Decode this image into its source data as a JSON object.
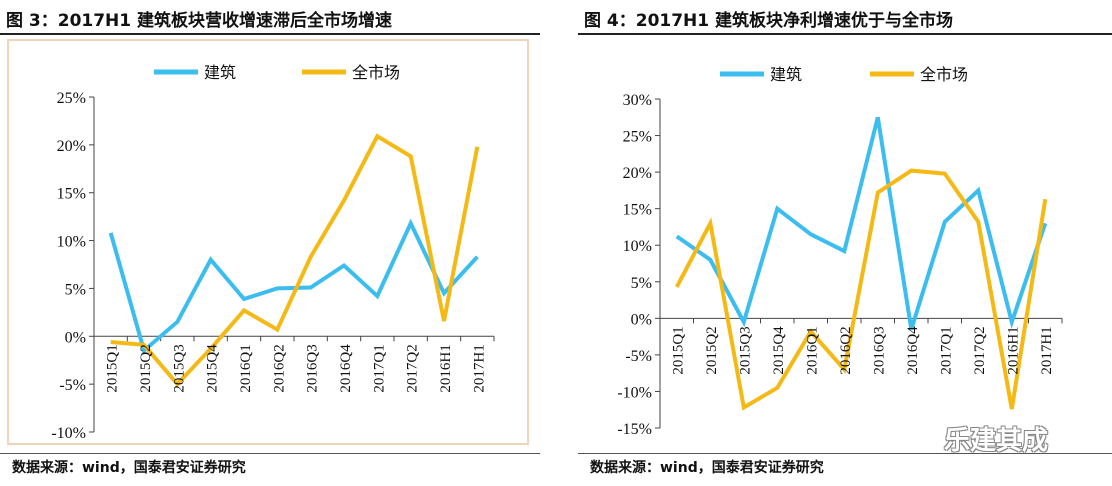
{
  "panels": [
    {
      "title": "图 3：2017H1 建筑板块营收增速滞后全市场增速",
      "source": "数据来源：wind，国泰君安证券研究",
      "chart_data": {
        "type": "line",
        "categories": [
          "2015Q1",
          "2015Q2",
          "2015Q3",
          "2015Q4",
          "2016Q1",
          "2016Q2",
          "2016Q3",
          "2016Q4",
          "2017Q1",
          "2017Q2",
          "2016H1",
          "2017H1"
        ],
        "series": [
          {
            "name": "建筑",
            "color": "#3bbdf0",
            "values": [
              10.8,
              -1.5,
              1.5,
              8.0,
              3.9,
              5.0,
              5.1,
              7.4,
              4.2,
              11.8,
              4.5,
              8.3
            ]
          },
          {
            "name": "全市场",
            "color": "#f5b915",
            "values": [
              -0.6,
              -0.9,
              -5.0,
              -1.3,
              2.7,
              0.7,
              8.3,
              14.2,
              20.9,
              18.8,
              1.6,
              19.8
            ]
          }
        ],
        "yticks": [
          "25%",
          "20%",
          "15%",
          "10%",
          "5%",
          "0%",
          "-5%",
          "-10%"
        ],
        "ylim": [
          -10,
          25
        ],
        "legend": "top",
        "grid": false,
        "border_color": "#f2d3b8"
      }
    },
    {
      "title": "图 4：2017H1 建筑板块净利增速优于与全市场",
      "source": "数据来源：wind，国泰君安证券研究",
      "chart_data": {
        "type": "line",
        "categories": [
          "2015Q1",
          "2015Q2",
          "2015Q3",
          "2015Q4",
          "2016Q1",
          "2016Q2",
          "2016Q3",
          "2016Q4",
          "2017Q1",
          "2017Q2",
          "2016H1",
          "2017H1"
        ],
        "series": [
          {
            "name": "建筑",
            "color": "#3bbdf0",
            "values": [
              11.2,
              8.0,
              -0.5,
              15.0,
              11.5,
              9.2,
              27.5,
              -1.5,
              13.2,
              17.5,
              -0.5,
              13.0
            ]
          },
          {
            "name": "全市场",
            "color": "#f5b915",
            "values": [
              4.3,
              13.0,
              -12.2,
              -9.5,
              -1.8,
              -7.0,
              17.2,
              20.2,
              19.8,
              13.2,
              -12.4,
              16.3
            ]
          }
        ],
        "yticks": [
          "30%",
          "25%",
          "20%",
          "15%",
          "10%",
          "5%",
          "0%",
          "-5%",
          "-10%",
          "-15%"
        ],
        "ylim": [
          -15,
          30
        ],
        "legend": "top",
        "grid": false,
        "border_color": ""
      }
    }
  ],
  "watermark": "乐建其成"
}
